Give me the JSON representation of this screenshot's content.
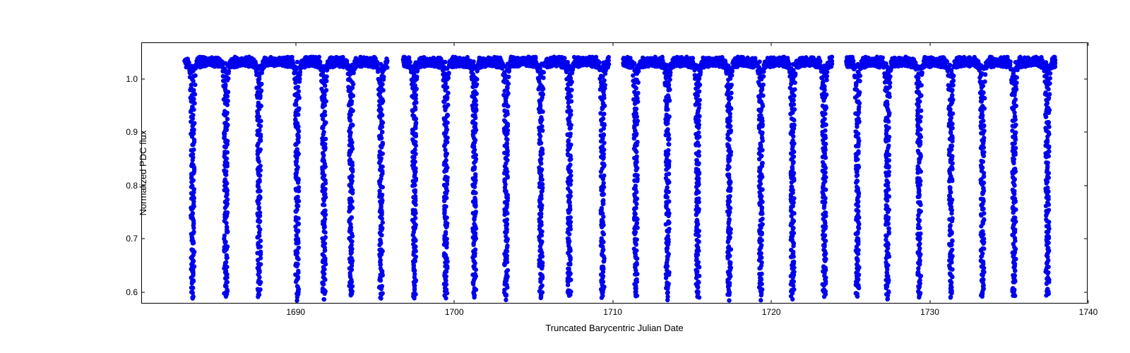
{
  "chart": {
    "type": "scatter",
    "xlabel": "Truncated Barycentric Julian Date",
    "ylabel": "Normalized PDC flux",
    "xlim": [
      1680.3,
      1740
    ],
    "ylim": [
      0.58,
      1.07
    ],
    "xticks": [
      1690,
      1700,
      1710,
      1720,
      1730,
      1740
    ],
    "yticks": [
      0.6,
      0.7,
      0.8,
      0.9,
      1.0
    ],
    "marker_color": "#0000ee",
    "marker_size": 3.2,
    "background_color": "#ffffff",
    "border_color": "#000000",
    "label_fontsize": 13,
    "tick_fontsize": 12,
    "baseline_flux": 1.03,
    "dip_depth": 0.59,
    "noise_amplitude": 0.007,
    "modulation_amplitude": 0.012,
    "dip_width": 0.2,
    "dip_centers": [
      1683.5,
      1685.6,
      1687.7,
      1690.1,
      1691.8,
      1693.5,
      1695.4,
      1697.5,
      1699.5,
      1701.3,
      1703.3,
      1705.5,
      1707.3,
      1709.4,
      1711.5,
      1713.5,
      1715.4,
      1717.4,
      1719.4,
      1721.4,
      1723.4,
      1725.5,
      1727.4,
      1729.4,
      1731.4,
      1733.4,
      1735.4,
      1737.5
    ],
    "data_gaps": [
      [
        1695.8,
        1696.8
      ],
      [
        1709.8,
        1710.7
      ],
      [
        1723.9,
        1724.8
      ]
    ],
    "x_range_data": [
      1683.0,
      1738.0
    ],
    "points_density": 80
  }
}
